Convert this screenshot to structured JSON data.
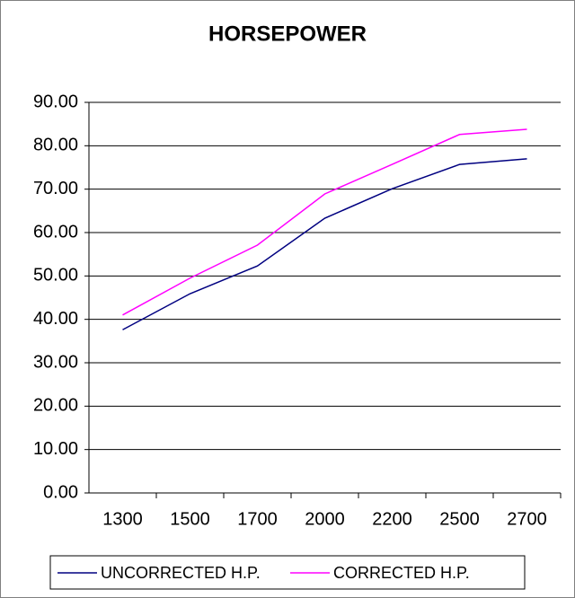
{
  "chart_data": {
    "type": "line",
    "title": "HORSEPOWER",
    "categories": [
      "1300",
      "1500",
      "1700",
      "2000",
      "2200",
      "2500",
      "2700"
    ],
    "series": [
      {
        "name": "UNCORRECTED H.P.",
        "color": "#000080",
        "values": [
          37.6,
          45.9,
          52.3,
          63.3,
          70.1,
          75.7,
          77.0
        ]
      },
      {
        "name": "CORRECTED H.P.",
        "color": "#ff00ff",
        "values": [
          41.0,
          49.5,
          57.1,
          68.9,
          75.7,
          82.6,
          83.8
        ]
      }
    ],
    "ylim": [
      0,
      90
    ],
    "yticks": [
      {
        "value": 0,
        "label": "0.00"
      },
      {
        "value": 10,
        "label": "10.00"
      },
      {
        "value": 20,
        "label": "20.00"
      },
      {
        "value": 30,
        "label": "30.00"
      },
      {
        "value": 40,
        "label": "40.00"
      },
      {
        "value": 50,
        "label": "50.00"
      },
      {
        "value": 60,
        "label": "60.00"
      },
      {
        "value": 70,
        "label": "70.00"
      },
      {
        "value": 80,
        "label": "80.00"
      },
      {
        "value": 90,
        "label": "90.00"
      }
    ],
    "grid": true,
    "legend": "bottom"
  }
}
